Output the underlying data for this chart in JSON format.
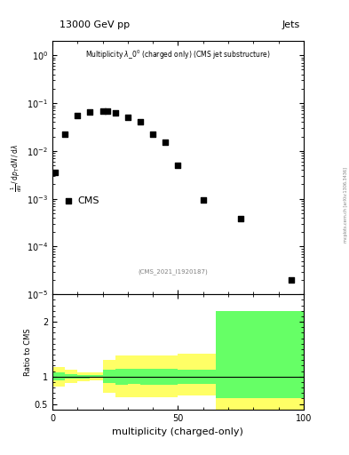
{
  "title_top": "13000 GeV pp",
  "title_top_right": "Jets",
  "cms_label": "CMS",
  "cms_ref": "(CMS_2021_I1920187)",
  "xlabel": "multiplicity (charged-only)",
  "ylabel_ratio": "Ratio to CMS",
  "right_label": "mcplots.cern.ch [arXiv:1306.3436]",
  "data_x": [
    1,
    5,
    10,
    15,
    20,
    22,
    25,
    30,
    35,
    40,
    45,
    50,
    60,
    75,
    95
  ],
  "data_y": [
    0.0035,
    0.022,
    0.055,
    0.065,
    0.068,
    0.067,
    0.063,
    0.05,
    0.04,
    0.022,
    0.015,
    0.005,
    0.00095,
    0.00038,
    2e-05
  ],
  "ylim_main": [
    1e-05,
    2.0
  ],
  "xlim": [
    0,
    100
  ],
  "ratio_yellow_x": [
    0,
    5,
    10,
    15,
    20,
    25,
    30,
    35,
    40,
    45,
    50,
    55,
    65,
    100
  ],
  "ratio_yellow_low": [
    0.82,
    0.88,
    0.92,
    0.93,
    0.7,
    0.62,
    0.63,
    0.62,
    0.62,
    0.62,
    0.65,
    0.65,
    0.4,
    0.4
  ],
  "ratio_yellow_high": [
    1.18,
    1.12,
    1.08,
    1.07,
    1.3,
    1.38,
    1.38,
    1.38,
    1.38,
    1.38,
    1.42,
    1.42,
    1.65,
    1.65
  ],
  "ratio_green_x": [
    0,
    5,
    10,
    15,
    20,
    25,
    30,
    35,
    40,
    45,
    50,
    55,
    65,
    100
  ],
  "ratio_green_low": [
    0.93,
    0.96,
    0.97,
    0.975,
    0.88,
    0.85,
    0.86,
    0.85,
    0.85,
    0.85,
    0.87,
    0.87,
    0.6,
    0.6
  ],
  "ratio_green_high": [
    1.07,
    1.04,
    1.03,
    1.025,
    1.12,
    1.15,
    1.14,
    1.15,
    1.15,
    1.15,
    1.13,
    1.13,
    2.2,
    2.2
  ],
  "ratio_ylim": [
    0.4,
    2.5
  ],
  "ratio_yticks": [
    0.5,
    1.0,
    2.0
  ],
  "background_color": "#ffffff",
  "marker_color": "#000000",
  "yellow_color": "#ffff66",
  "green_color": "#66ff66"
}
